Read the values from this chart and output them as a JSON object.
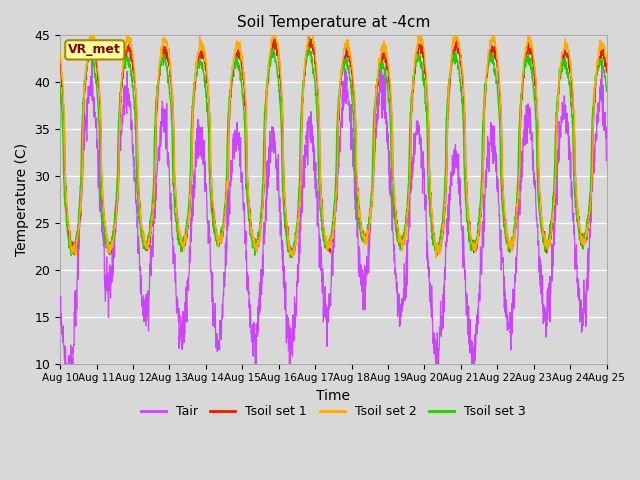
{
  "title": "Soil Temperature at -4cm",
  "xlabel": "Time",
  "ylabel": "Temperature (C)",
  "ylim": [
    10,
    45
  ],
  "ytick_vals": [
    10,
    15,
    20,
    25,
    30,
    35,
    40,
    45
  ],
  "xtick_labels": [
    "Aug 10",
    "Aug 11",
    "Aug 12",
    "Aug 13",
    "Aug 14",
    "Aug 15",
    "Aug 16",
    "Aug 17",
    "Aug 18",
    "Aug 19",
    "Aug 20",
    "Aug 21",
    "Aug 22",
    "Aug 23",
    "Aug 24",
    "Aug 25"
  ],
  "legend_labels": [
    "Tair",
    "Tsoil set 1",
    "Tsoil set 2",
    "Tsoil set 3"
  ],
  "colors": {
    "Tair": "#cc44ff",
    "Tsoil_set1": "#dd2200",
    "Tsoil_set2": "#ffaa00",
    "Tsoil_set3": "#22cc00"
  },
  "annotation_text": "VR_met",
  "annotation_box_facecolor": "#ffff99",
  "annotation_box_edgecolor": "#aa8800",
  "annotation_text_color": "#880000",
  "fig_facecolor": "#d8d8d8",
  "ax_facecolor": "#d8d8d8",
  "grid_color": "#ffffff",
  "n_days": 15,
  "ppd": 144
}
